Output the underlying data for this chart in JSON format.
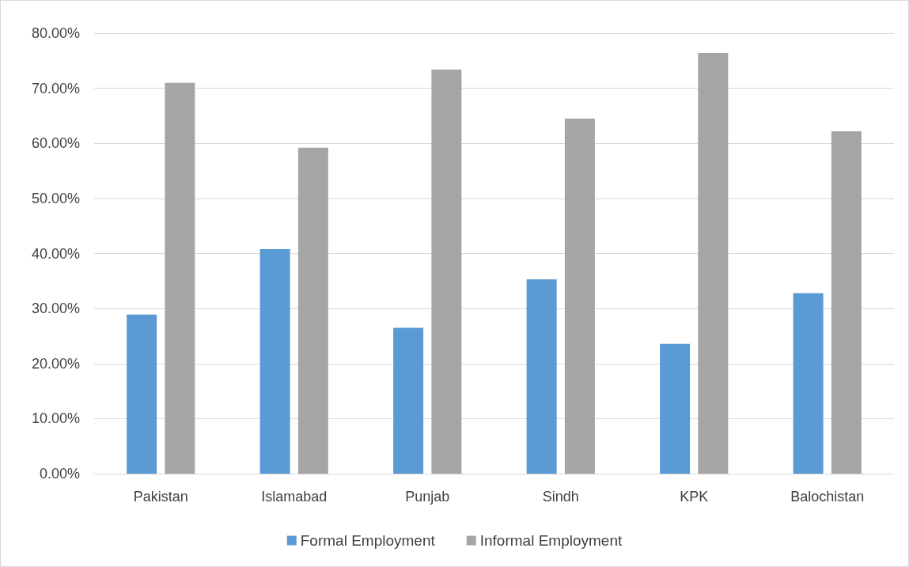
{
  "chart_data": {
    "type": "bar",
    "categories": [
      "Pakistan",
      "Islamabad",
      "Punjab",
      "Sindh",
      "KPK",
      "Balochistan"
    ],
    "series": [
      {
        "name": "Formal Employment",
        "color": "#5b9bd5",
        "values": [
          28.9,
          40.8,
          26.5,
          35.3,
          23.6,
          32.8
        ]
      },
      {
        "name": "Informal Employment",
        "color": "#a5a5a5",
        "values": [
          71.0,
          59.2,
          73.4,
          64.5,
          76.4,
          62.2
        ]
      }
    ],
    "ylim": [
      0,
      80
    ],
    "yticks": [
      {
        "value": 0,
        "label": "0.00%"
      },
      {
        "value": 10,
        "label": "10.00%"
      },
      {
        "value": 20,
        "label": "20.00%"
      },
      {
        "value": 30,
        "label": "30.00%"
      },
      {
        "value": 40,
        "label": "40.00%"
      },
      {
        "value": 50,
        "label": "50.00%"
      },
      {
        "value": 60,
        "label": "60.00%"
      },
      {
        "value": 70,
        "label": "70.00%"
      },
      {
        "value": 80,
        "label": "80.00%"
      }
    ],
    "grid": "y",
    "legend": "bottom"
  }
}
